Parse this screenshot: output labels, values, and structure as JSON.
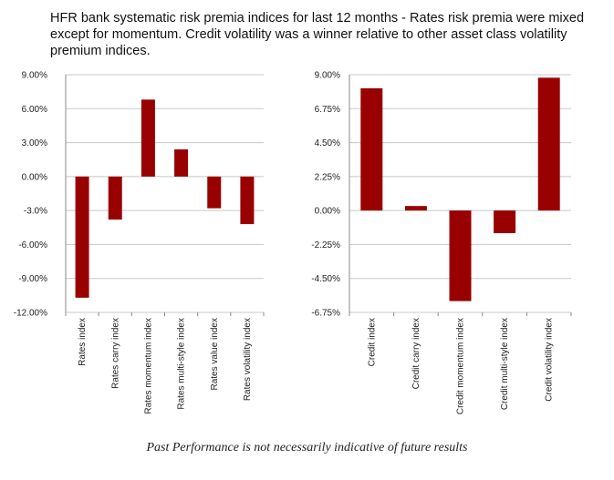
{
  "title": "HFR bank systematic risk premia indices for last 12 months - Rates risk premia were mixed except for momentum. Credit volatility was a winner relative to other asset class volatility premium indices.",
  "footer": "Past Performance is not necessarily indicative of future results",
  "colors": {
    "bar": "#990000",
    "grid": "#c8c8c8",
    "axis": "#888888"
  },
  "chart_data": [
    {
      "type": "bar",
      "title": "",
      "xlabel": "",
      "ylabel": "",
      "categories": [
        "Rates index",
        "Rates carry index",
        "Rates momentum index",
        "Rates multi-style index",
        "Rates value index",
        "Rates volatility index"
      ],
      "values": [
        -10.7,
        -3.8,
        6.8,
        2.4,
        -2.8,
        -4.2
      ],
      "ylim": [
        -12,
        9
      ],
      "yticks": [
        9,
        6,
        3,
        0,
        -3,
        -6,
        -9,
        -12
      ],
      "ytick_labels": [
        "9.00%",
        "6.00%",
        "3.00%",
        "0.00%",
        "-3.0%",
        "-6.00%",
        "-9.00%",
        "-12.00%"
      ],
      "grid": true,
      "legend": "none"
    },
    {
      "type": "bar",
      "title": "",
      "xlabel": "",
      "ylabel": "",
      "categories": [
        "Credit index",
        "Credit carry index",
        "Credit momentum index",
        "Credit multi-style index",
        "Credit volatility index"
      ],
      "values": [
        8.1,
        0.3,
        -6.0,
        -1.5,
        8.8
      ],
      "ylim": [
        -6.75,
        9
      ],
      "yticks": [
        9,
        6.75,
        4.5,
        2.25,
        0,
        -2.25,
        -4.5,
        -6.75
      ],
      "ytick_labels": [
        "9.00%",
        "6.75%",
        "4.50%",
        "2.25%",
        "0.00%",
        "-2.25%",
        "-4.50%",
        "-6.75%"
      ],
      "grid": true,
      "legend": "none"
    }
  ]
}
